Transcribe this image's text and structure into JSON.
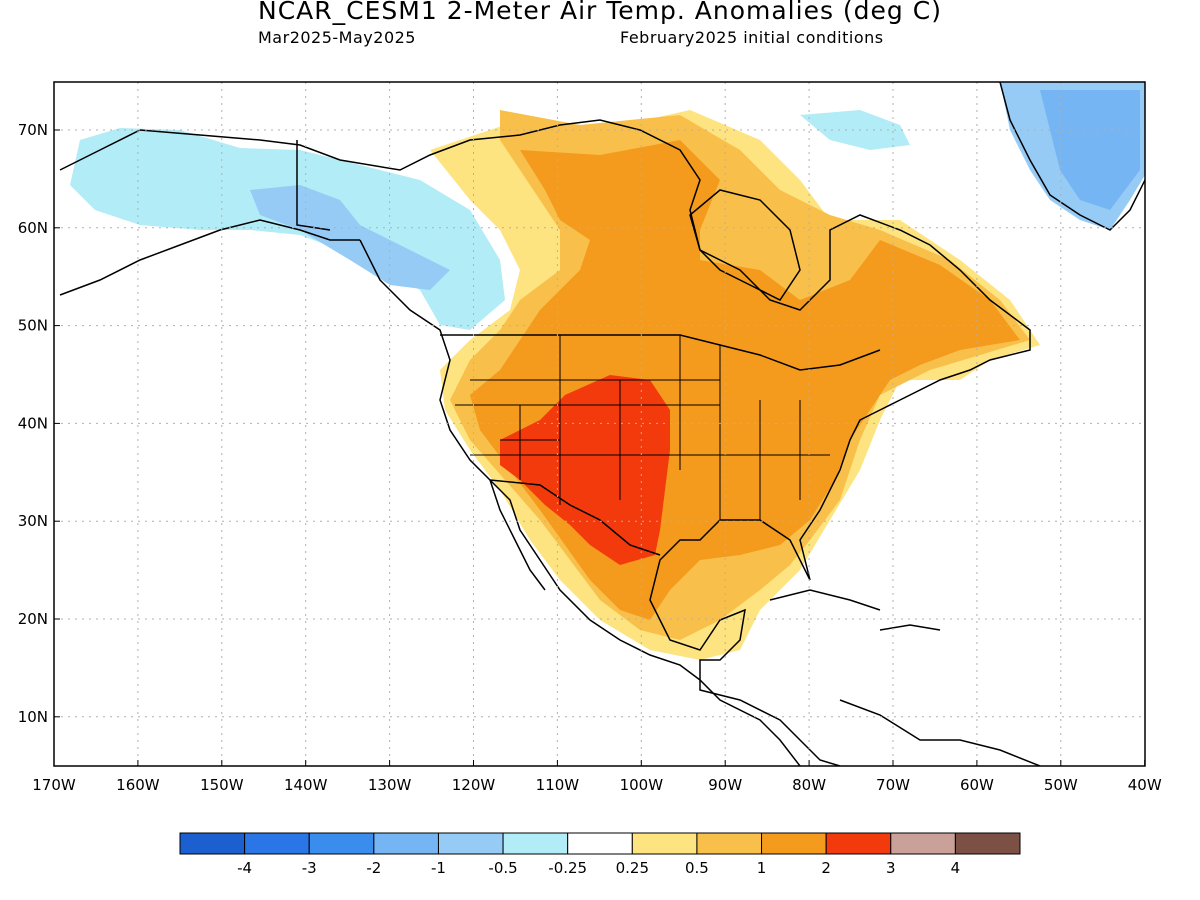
{
  "title": "NCAR_CESM1 2-Meter Air Temp. Anomalies (deg C)",
  "subtitle_left": "Mar2025-May2025",
  "subtitle_right": "February2025 initial conditions",
  "lat_labels": [
    "70N",
    "60N",
    "50N",
    "40N",
    "30N",
    "20N",
    "10N"
  ],
  "lon_labels": [
    "170W",
    "160W",
    "150W",
    "140W",
    "130W",
    "120W",
    "110W",
    "100W",
    "90W",
    "80W",
    "70W",
    "60W",
    "50W",
    "40W"
  ],
  "colorbar": {
    "colors": [
      "#1c5fcf",
      "#2a76e6",
      "#3b8ded",
      "#75b5f3",
      "#96cbf6",
      "#b2ecf6",
      "#ffffff",
      "#fde480",
      "#f8c04a",
      "#f49a1c",
      "#f33a0c",
      "#c9a198",
      "#7d5046"
    ],
    "labels": [
      "-4",
      "-3",
      "-2",
      "-1",
      "-0.5",
      "-0.25",
      "0.25",
      "0.5",
      "1",
      "2",
      "3",
      "4"
    ]
  }
}
